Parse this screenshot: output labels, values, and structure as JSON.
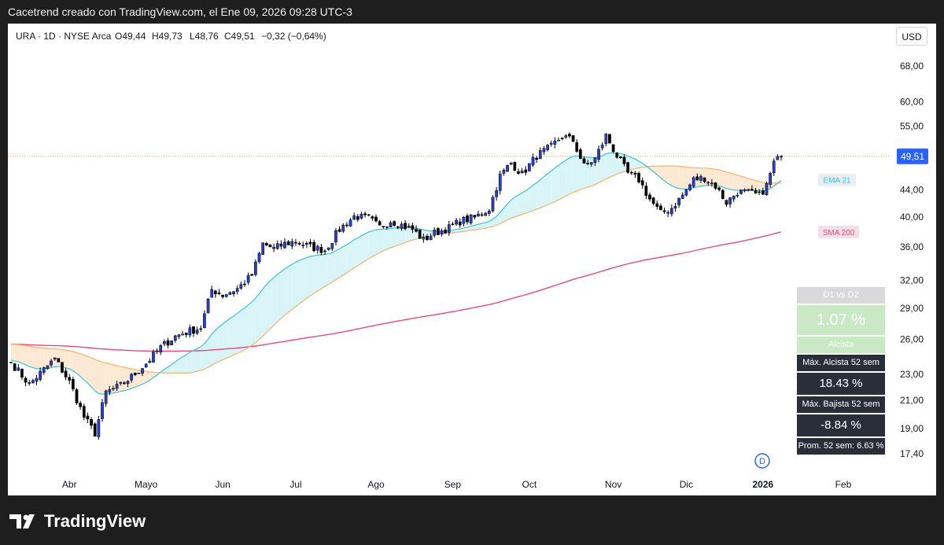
{
  "header": {
    "caption": "Cacetrend creado con TradingView.com, el Ene 09, 2026 09:28 UTC-3"
  },
  "legend": {
    "symbol_line": "URA · 1D · NYSE Arca",
    "open": "O49,44",
    "high": "H49,73",
    "low": "L48,76",
    "close": "C49,51",
    "change": "−0,32 (−0,64%)"
  },
  "currency_button": "USD",
  "last_price_label": "49,51",
  "ma_labels": {
    "ema": "EMA 21",
    "sma": "SMA 200"
  },
  "event_marker": "D",
  "stats": {
    "header": "D1 vs D2",
    "value": "1.07 %",
    "status": "Alcista",
    "max_up_label": "Máx. Alcista 52 sem",
    "max_up_value": "18.43 %",
    "max_down_label": "Máx. Bajista 52 sem",
    "max_down_value": "-8.84 %",
    "avg_label": "Prom. 52 sem: 6.63 %"
  },
  "branding": {
    "logo_text": "TradingView"
  },
  "colors": {
    "up_candle": "#2a3fcf",
    "down_candle": "#000000",
    "ema": "#3cc1d6",
    "sma50": "#f4b36a",
    "sma200": "#e84a7e",
    "ema_fill": "#d8f4f7",
    "sma_fill": "#fde9d3",
    "last_price": "#2962ff",
    "stats_green": "#c9e8c4",
    "stats_dark": "#2a2e39",
    "stats_gray": "#d9d9dc"
  },
  "chart_data": {
    "type": "candlestick",
    "scale": "log",
    "currency": "USD",
    "y_ticks": [
      "68,00",
      "60,00",
      "55,00",
      "44,00",
      "40,00",
      "36,00",
      "32,00",
      "29,00",
      "26,00",
      "23,00",
      "21,00",
      "19,00",
      "17,40"
    ],
    "y_tick_values": [
      68,
      60,
      55,
      44,
      40,
      36,
      32,
      29,
      26,
      23,
      21,
      19,
      17.4
    ],
    "x_ticks": [
      {
        "label": "Abr",
        "index": 16
      },
      {
        "label": "Mayo",
        "index": 37
      },
      {
        "label": "Jun",
        "index": 58
      },
      {
        "label": "Jul",
        "index": 78
      },
      {
        "label": "Ago",
        "index": 100
      },
      {
        "label": "Sep",
        "index": 121
      },
      {
        "label": "Oct",
        "index": 142
      },
      {
        "label": "Nov",
        "index": 165
      },
      {
        "label": "Dic",
        "index": 185
      },
      {
        "label": "2026",
        "index": 206,
        "bold": true
      },
      {
        "label": "Feb",
        "index": 228
      }
    ],
    "x_index_range": [
      0,
      243
    ],
    "last_price": 49.51,
    "ohlc": {
      "open": 49.44,
      "high": 49.73,
      "low": 48.76,
      "close": 49.51
    },
    "close_anchors": [
      [
        0,
        24.0
      ],
      [
        5,
        22.2
      ],
      [
        8,
        23.1
      ],
      [
        12,
        24.3
      ],
      [
        16,
        22.4
      ],
      [
        20,
        19.8
      ],
      [
        23,
        18.7
      ],
      [
        26,
        21.6
      ],
      [
        30,
        22.1
      ],
      [
        33,
        22.8
      ],
      [
        37,
        23.9
      ],
      [
        41,
        25.3
      ],
      [
        45,
        26.3
      ],
      [
        49,
        26.8
      ],
      [
        52,
        27.1
      ],
      [
        55,
        31.0
      ],
      [
        58,
        30.4
      ],
      [
        62,
        31.1
      ],
      [
        66,
        32.6
      ],
      [
        69,
        36.4
      ],
      [
        72,
        35.8
      ],
      [
        75,
        36.4
      ],
      [
        78,
        36.7
      ],
      [
        82,
        36.0
      ],
      [
        86,
        35.6
      ],
      [
        90,
        38.3
      ],
      [
        94,
        40.1
      ],
      [
        98,
        39.8
      ],
      [
        101,
        38.6
      ],
      [
        104,
        39.5
      ],
      [
        107,
        38.9
      ],
      [
        110,
        38.3
      ],
      [
        113,
        36.9
      ],
      [
        116,
        37.8
      ],
      [
        120,
        38.5
      ],
      [
        123,
        39.4
      ],
      [
        127,
        39.9
      ],
      [
        131,
        41.2
      ],
      [
        134,
        46.2
      ],
      [
        137,
        48.4
      ],
      [
        140,
        46.5
      ],
      [
        144,
        49.6
      ],
      [
        148,
        51.2
      ],
      [
        151,
        53.2
      ],
      [
        154,
        52.3
      ],
      [
        157,
        47.8
      ],
      [
        160,
        49.1
      ],
      [
        163,
        53.2
      ],
      [
        166,
        49.6
      ],
      [
        169,
        46.6
      ],
      [
        172,
        45.6
      ],
      [
        175,
        42.6
      ],
      [
        178,
        40.5
      ],
      [
        181,
        41.3
      ],
      [
        184,
        43.2
      ],
      [
        187,
        45.6
      ],
      [
        190,
        45.9
      ],
      [
        193,
        44.6
      ],
      [
        196,
        42.1
      ],
      [
        199,
        43.7
      ],
      [
        202,
        43.6
      ],
      [
        205,
        43.1
      ],
      [
        207,
        44.7
      ],
      [
        209,
        48.4
      ],
      [
        211,
        49.51
      ]
    ],
    "series": [
      {
        "name": "EMA 21",
        "kind": "ema",
        "period": 21
      },
      {
        "name": "SMA 50",
        "kind": "sma",
        "period": 50
      },
      {
        "name": "SMA 200",
        "kind": "sma",
        "period": 200
      }
    ]
  }
}
